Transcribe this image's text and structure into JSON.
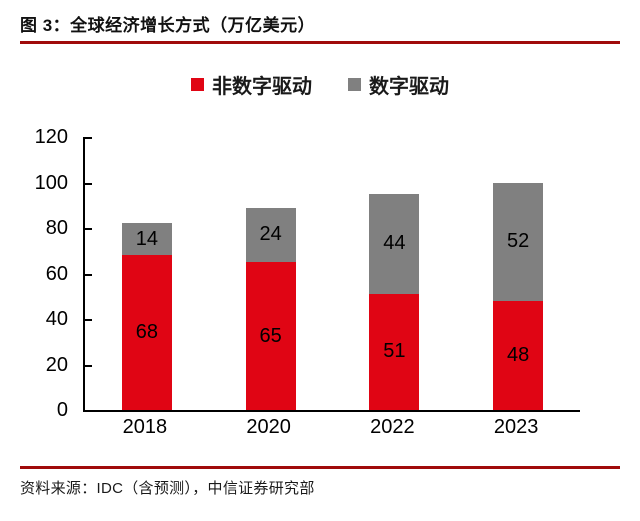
{
  "title": {
    "label": "图 3：全球经济增长方式（万亿美元）"
  },
  "legend": [
    {
      "label": "非数字驱动",
      "color": "#E00514"
    },
    {
      "label": "数字驱动",
      "color": "#808080"
    }
  ],
  "chart_data": {
    "type": "bar",
    "stacked": true,
    "title": "全球经济增长方式（万亿美元）",
    "categories": [
      "2018",
      "2020",
      "2022",
      "2023"
    ],
    "series": [
      {
        "name": "非数字驱动",
        "color": "#E00514",
        "values": [
          68,
          65,
          51,
          48
        ]
      },
      {
        "name": "数字驱动",
        "color": "#808080",
        "values": [
          14,
          24,
          44,
          52
        ]
      }
    ],
    "totals": [
      82,
      89,
      95,
      100
    ],
    "xlabel": "",
    "ylabel": "",
    "ylim": [
      0,
      120
    ],
    "yticks": [
      0,
      20,
      40,
      60,
      80,
      100,
      120
    ],
    "grid": false,
    "legend_position": "top"
  },
  "source": {
    "label": "资料来源：IDC（含预测），中信证券研究部"
  },
  "colors": {
    "rule_red": "#A00A0A",
    "bar_red": "#E00514",
    "bar_gray": "#808080",
    "axis_black": "#000000"
  }
}
